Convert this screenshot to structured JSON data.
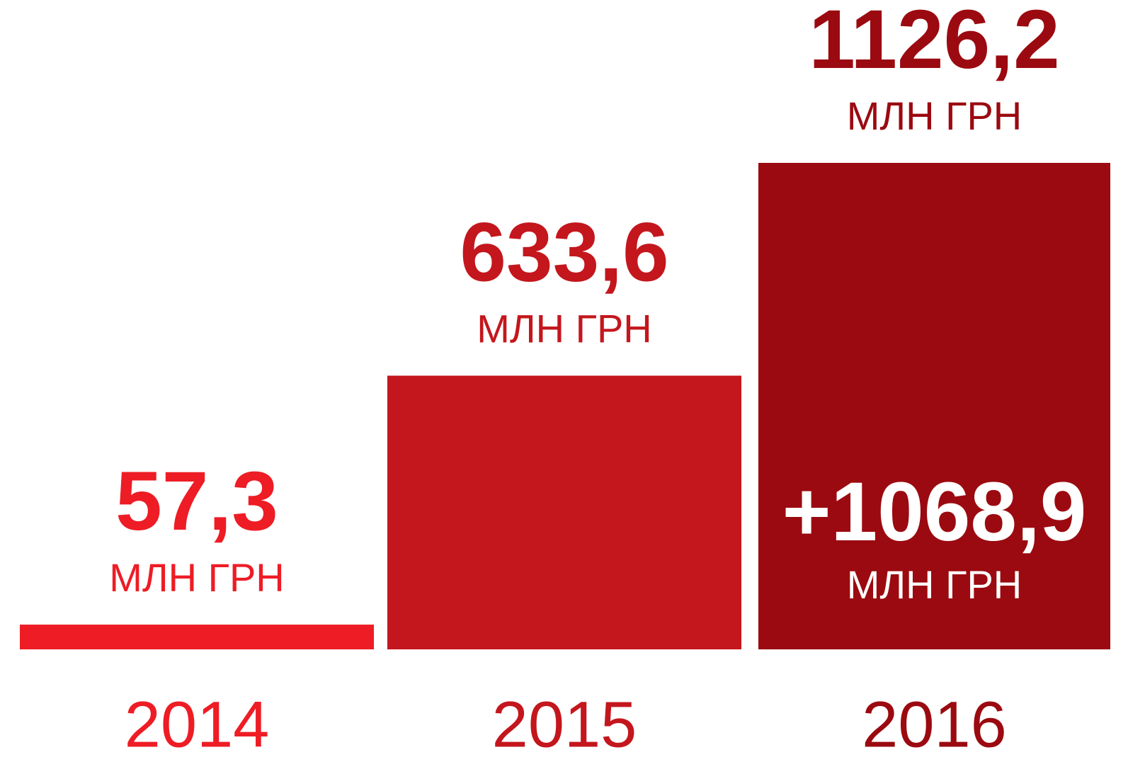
{
  "chart_data": {
    "type": "bar",
    "categories": [
      "2014",
      "2015",
      "2016"
    ],
    "values": [
      57.3,
      633.6,
      1126.2
    ],
    "value_labels": [
      "57,3",
      "633,6",
      "1126,2"
    ],
    "unit": "МЛН ГРН",
    "colors": [
      "#ee1c25",
      "#c4161d",
      "#9b0a10"
    ],
    "annotation": {
      "text": "+1068,9",
      "unit": "МЛН ГРН",
      "color": "#ffffff"
    }
  }
}
